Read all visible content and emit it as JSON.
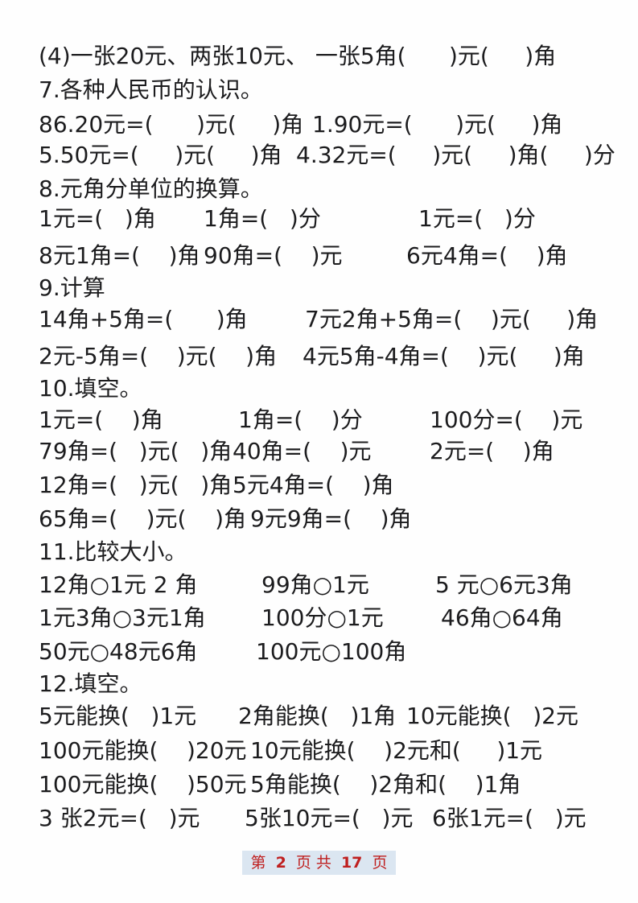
{
  "page": {
    "background_color": "#fefefe",
    "text_color": "#1c1c1e"
  },
  "worksheet": {
    "lines": [
      {
        "segments": [
          "(4)一张20元、两张10元、 一张5角(      )元(     )角"
        ]
      },
      {
        "segments": [
          "7.各种人民币的认识。"
        ]
      },
      {
        "segments": [
          "86.20元=(      )元(     )角",
          "1.90元=(      )元(     )角"
        ]
      },
      {
        "segments": [
          "5.50元=(     )元(     )角",
          "4.32元=(     )元(     )角(     )分"
        ]
      },
      {
        "segments": [
          "8.元角分单位的换算。"
        ]
      },
      {
        "segments": [
          "1元=(   )角",
          "1角=(   )分",
          "1元=(   )分"
        ]
      },
      {
        "segments": [
          "8元1角=(    )角",
          "90角=(    )元",
          "6元4角=(    )角"
        ]
      },
      {
        "segments": [
          "9.计算"
        ]
      },
      {
        "segments": [
          "14角+5角=(      )角",
          "7元2角+5角=(    )元(     )角"
        ]
      },
      {
        "segments": [
          "2元-5角=(    )元(    )角",
          "4元5角-4角=(    )元(     )角"
        ]
      },
      {
        "segments": [
          "10.填空。"
        ]
      },
      {
        "segments": [
          "1元=(    )角",
          "1角=(    )分",
          "100分=(    )元"
        ]
      },
      {
        "segments": [
          "79角=(   )元(   )角",
          "40角=(    )元",
          "2元=(    )角"
        ]
      },
      {
        "segments": [
          "12角=(   )元(   )角",
          "5元4角=(    )角"
        ]
      },
      {
        "segments": [
          "65角=(    )元(    )角",
          "9元9角=(    )角"
        ]
      },
      {
        "segments": [
          "11.比较大小。"
        ]
      },
      {
        "segments": [
          "12角○1元 2 角",
          "99角○1元",
          "5 元○6元3角"
        ]
      },
      {
        "segments": [
          "1元3角○3元1角",
          "100分○1元",
          "46角○64角"
        ]
      },
      {
        "segments": [
          "50元○48元6角",
          "100元○100角"
        ]
      },
      {
        "segments": [
          "12.填空。"
        ]
      },
      {
        "segments": [
          "5元能换(   )1元",
          "2角能换(   )1角",
          "10元能换(   )2元"
        ]
      },
      {
        "segments": [
          "100元能换(    )20元",
          "10元能换(    )2元和(     )1元"
        ]
      },
      {
        "segments": [
          "100元能换(    )50元",
          "5角能换(    )2角和(    )1角"
        ]
      },
      {
        "segments": [
          "3 张2元=(   )元",
          "5张10元=(   )元",
          "6张1元=(   )元"
        ]
      }
    ]
  },
  "footer": {
    "text_before_page": "第",
    "page_number": "2",
    "text_between": "页 共",
    "total_pages": "17",
    "text_after": "页",
    "text_color": "#bf1f1f",
    "highlight_color": "#dbe6f1"
  }
}
